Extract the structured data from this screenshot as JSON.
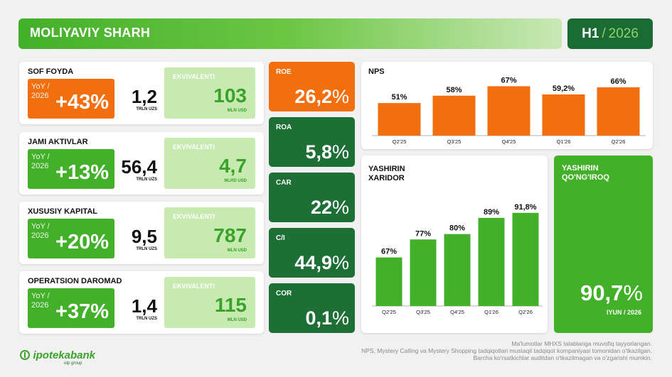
{
  "header": {
    "title": "MOLIYAVIY SHARH",
    "period_half": "H1",
    "period_sep": "/",
    "period_year": "2026"
  },
  "metrics": [
    {
      "title": "SOF FOYDA",
      "yoy_label": "YoY /",
      "yoy_year": "2026",
      "yoy_value": "+43%",
      "value": "1,2",
      "unit": "TRLN UZS",
      "eq_label": "EKVIVALENTI",
      "eq_value": "103",
      "eq_unit": "MLN USD",
      "color": "#f26f0f"
    },
    {
      "title": "JAMI AKTIVLAR",
      "yoy_label": "YoY /",
      "yoy_year": "2026",
      "yoy_value": "+13%",
      "value": "56,4",
      "unit": "TRLN UZS",
      "eq_label": "EKVIVALENTI",
      "eq_value": "4,7",
      "eq_unit": "MLRD USD",
      "color": "#43b02a"
    },
    {
      "title": "XUSUSIY KAPITAL",
      "yoy_label": "YoY /",
      "yoy_year": "2026",
      "yoy_value": "+20%",
      "value": "9,5",
      "unit": "TRLN UZS",
      "eq_label": "EKVIVALENTI",
      "eq_value": "787",
      "eq_unit": "MLN USD",
      "color": "#43b02a"
    },
    {
      "title": "OPERATSION DAROMAD",
      "yoy_label": "YoY /",
      "yoy_year": "2026",
      "yoy_value": "+37%",
      "value": "1,4",
      "unit": "TRLN UZS",
      "eq_label": "EKVIVALENTI",
      "eq_value": "115",
      "eq_unit": "MLN USD",
      "color": "#43b02a"
    }
  ],
  "ratios": [
    {
      "label": "ROE",
      "value": "26,2",
      "pct": "%",
      "color": "#f26f0f"
    },
    {
      "label": "ROA",
      "value": "5,8",
      "pct": "%",
      "color": "#1e6f36"
    },
    {
      "label": "CAR",
      "value": "22",
      "pct": "%",
      "color": "#1e6f36"
    },
    {
      "label": "C/I",
      "value": "44,9",
      "pct": "%",
      "color": "#1e6f36"
    },
    {
      "label": "COR",
      "value": "0,1",
      "pct": "%",
      "color": "#1e6f36"
    }
  ],
  "chart_data": [
    {
      "type": "bar",
      "title": "NPS",
      "categories": [
        "Q2'25",
        "Q3'25",
        "Q4'25",
        "Q1'26",
        "Q2'26"
      ],
      "values": [
        51,
        58,
        67,
        59.2,
        66
      ],
      "data_labels": [
        "51%",
        "58%",
        "67%",
        "59,2%",
        "66%"
      ],
      "bar_color": "#f26f0f",
      "ylim": [
        20,
        70
      ]
    },
    {
      "type": "bar",
      "title": "YASHIRIN XARIDOR",
      "categories": [
        "Q2'25",
        "Q3'25",
        "Q4'25",
        "Q1'26",
        "Q2'26"
      ],
      "values": [
        67,
        77,
        80,
        89,
        91.8
      ],
      "data_labels": [
        "67%",
        "77%",
        "80%",
        "89%",
        "91,8%"
      ],
      "bar_color": "#43b02a",
      "ylim": [
        40,
        100
      ]
    }
  ],
  "hidden_boundary": {
    "title": "YASHIRIN QO'NG'IROQ",
    "value": "90,7",
    "pct": "%",
    "date": "IYUN / 2026"
  },
  "footer": {
    "logo_text": "ipotekabank",
    "logo_sub": "otp group",
    "notes": [
      "Ma'lumotlar MHXS talablariga muvofiq tayyorlangan.",
      "NPS, Mystery Calling va Mystery Shopping tadqiqotlari mustaqil tadqiqot kompaniyasi tomonidan o'tkazilgan.",
      "Barcha ko'rsatkichlar auditdan o'tkazilmagan va o'zgarishi mumkin."
    ]
  }
}
